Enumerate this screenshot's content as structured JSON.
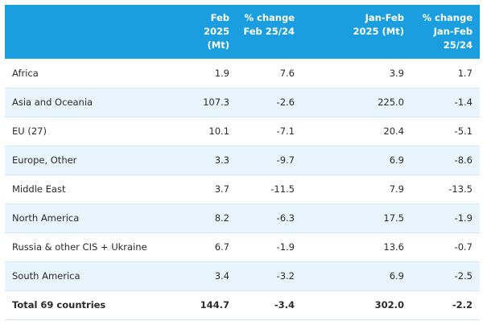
{
  "table": {
    "headers": [
      {
        "lines": [
          ""
        ]
      },
      {
        "lines": [
          "Feb 2025",
          "(Mt)"
        ]
      },
      {
        "lines": [
          "% change",
          "Feb 25/24"
        ]
      },
      {
        "lines": [
          "Jan-Feb",
          "2025 (Mt)"
        ]
      },
      {
        "lines": [
          "% change",
          "Jan-Feb",
          "25/24"
        ]
      }
    ],
    "rows": [
      {
        "region": "Africa",
        "feb": "1.9",
        "feb_change": "7.6",
        "ytd": "3.9",
        "ytd_change": "1.7"
      },
      {
        "region": "Asia and Oceania",
        "feb": "107.3",
        "feb_change": "-2.6",
        "ytd": "225.0",
        "ytd_change": "-1.4"
      },
      {
        "region": "EU (27)",
        "feb": "10.1",
        "feb_change": "-7.1",
        "ytd": "20.4",
        "ytd_change": "-5.1"
      },
      {
        "region": "Europe, Other",
        "feb": "3.3",
        "feb_change": "-9.7",
        "ytd": "6.9",
        "ytd_change": "-8.6"
      },
      {
        "region": "Middle East",
        "feb": "3.7",
        "feb_change": "-11.5",
        "ytd": "7.9",
        "ytd_change": "-13.5"
      },
      {
        "region": "North America",
        "feb": "8.2",
        "feb_change": "-6.3",
        "ytd": "17.5",
        "ytd_change": "-1.9"
      },
      {
        "region": "Russia & other CIS + Ukraine",
        "feb": "6.7",
        "feb_change": "-1.9",
        "ytd": "13.6",
        "ytd_change": "-0.7"
      },
      {
        "region": "South America",
        "feb": "3.4",
        "feb_change": "-3.2",
        "ytd": "6.9",
        "ytd_change": "-2.5"
      }
    ],
    "total": {
      "region": "Total 69 countries",
      "feb": "144.7",
      "feb_change": "-3.4",
      "ytd": "302.0",
      "ytd_change": "-2.2"
    }
  },
  "colors": {
    "header_bg": "#1a9ee0",
    "header_text": "#ffffff",
    "alt_row_bg": "#e8f5fd",
    "row_border": "#d6e6f0"
  }
}
